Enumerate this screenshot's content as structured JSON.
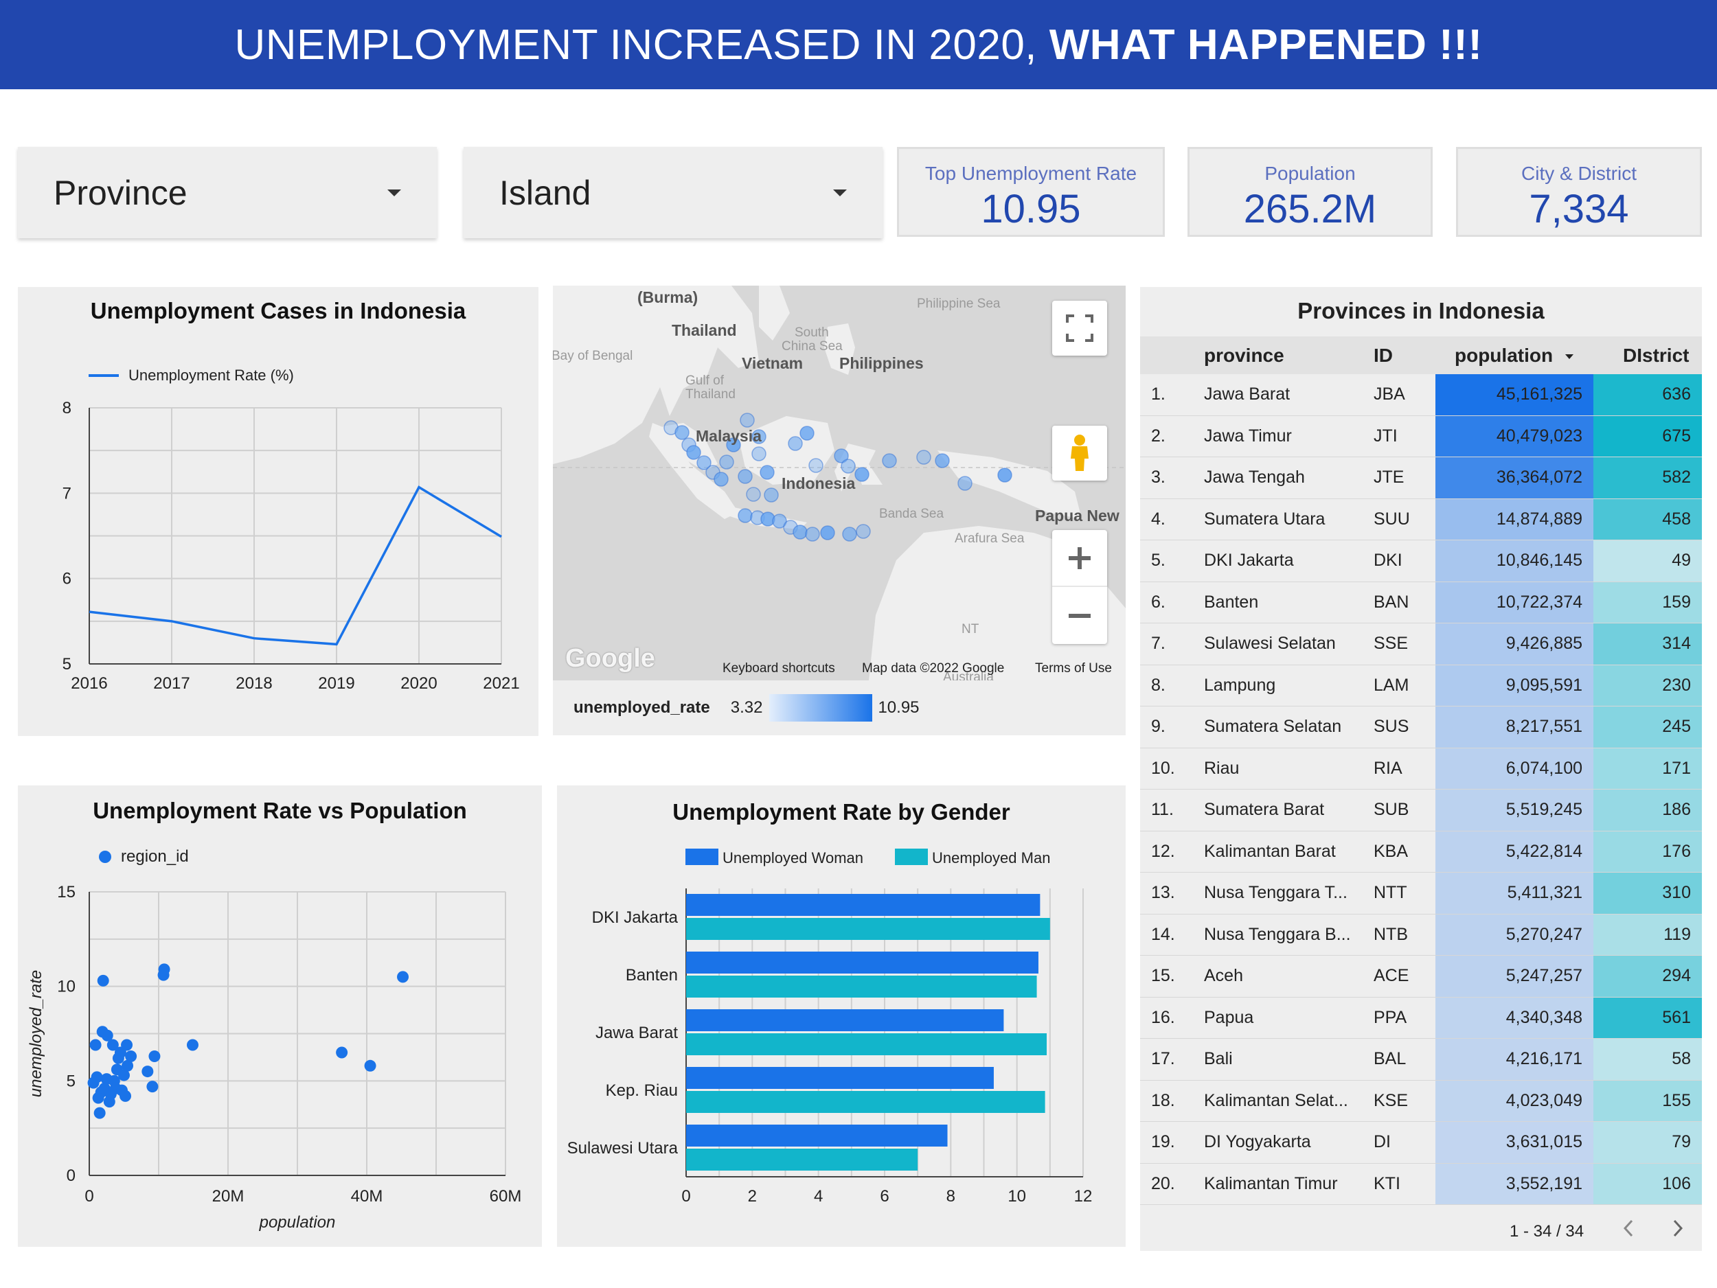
{
  "header": {
    "title_regular": "UNEMPLOYMENT INCREASED IN 2020,",
    "title_bold": "WHAT HAPPENED !!!"
  },
  "filters": [
    {
      "label": "Province"
    },
    {
      "label": "Island"
    }
  ],
  "kpis": [
    {
      "label": "Top Unemployment Rate",
      "value": "10.95"
    },
    {
      "label": "Population",
      "value": "265.2M"
    },
    {
      "label": "City & District",
      "value": "7,334"
    }
  ],
  "colors": {
    "header_bg": "#2147ae",
    "kpi_value": "#2147ae",
    "series_blue": "#1a73e8",
    "series_teal": "#12b5cb"
  },
  "line_chart": {
    "title": "Unemployment Cases in Indonesia",
    "legend": "Unemployment Rate (%)",
    "chart_data": {
      "type": "line",
      "x": [
        "2016",
        "2017",
        "2018",
        "2019",
        "2020",
        "2021"
      ],
      "series": [
        {
          "name": "Unemployment Rate (%)",
          "values": [
            5.61,
            5.5,
            5.3,
            5.23,
            7.07,
            6.49
          ]
        }
      ],
      "ylim": [
        5,
        8
      ],
      "yticks": [
        "5",
        "6",
        "7",
        "8"
      ],
      "grid": true,
      "legend_position": "top-left"
    }
  },
  "scatter_chart": {
    "title": "Unemployment Rate vs Population",
    "legend": "region_id",
    "chart_data": {
      "type": "scatter",
      "xlabel": "population",
      "ylabel": "unemployed_rate",
      "xlim": [
        0,
        60000000
      ],
      "ylim": [
        0,
        15
      ],
      "xticks": [
        "0",
        "20M",
        "40M",
        "60M"
      ],
      "yticks": [
        "0",
        "5",
        "10",
        "15"
      ],
      "series": [
        {
          "name": "region_id",
          "points": [
            [
              600000,
              4.9
            ],
            [
              900000,
              6.9
            ],
            [
              1100000,
              5.2
            ],
            [
              1300000,
              4.1
            ],
            [
              1500000,
              3.3
            ],
            [
              1700000,
              4.4
            ],
            [
              1900000,
              7.6
            ],
            [
              2000000,
              10.3
            ],
            [
              2200000,
              4.6
            ],
            [
              2500000,
              5.1
            ],
            [
              2600000,
              7.4
            ],
            [
              2900000,
              3.9
            ],
            [
              3100000,
              4.3
            ],
            [
              3400000,
              6.9
            ],
            [
              3600000,
              5.0
            ],
            [
              3800000,
              4.6
            ],
            [
              4000000,
              5.6
            ],
            [
              4200000,
              6.2
            ],
            [
              4500000,
              6.5
            ],
            [
              4700000,
              4.5
            ],
            [
              5000000,
              5.3
            ],
            [
              5200000,
              4.2
            ],
            [
              5400000,
              6.9
            ],
            [
              5500000,
              5.8
            ],
            [
              6000000,
              6.3
            ],
            [
              8400000,
              5.5
            ],
            [
              9100000,
              4.7
            ],
            [
              9400000,
              6.3
            ],
            [
              10700000,
              10.6
            ],
            [
              10800000,
              10.9
            ],
            [
              14900000,
              6.9
            ],
            [
              36400000,
              6.5
            ],
            [
              40500000,
              5.8
            ],
            [
              45200000,
              10.5
            ]
          ]
        }
      ],
      "grid": true,
      "legend_position": "top-left"
    }
  },
  "bar_chart": {
    "title": "Unemployment Rate by Gender",
    "chart_data": {
      "type": "bar",
      "orientation": "horizontal",
      "categories": [
        "DKI Jakarta",
        "Banten",
        "Jawa Barat",
        "Kep. Riau",
        "Sulawesi Utara"
      ],
      "series": [
        {
          "name": "Unemployed Woman",
          "values": [
            10.7,
            10.65,
            9.6,
            9.3,
            7.9
          ]
        },
        {
          "name": "Unemployed Man",
          "values": [
            11.0,
            10.6,
            10.9,
            10.85,
            7.0
          ]
        }
      ],
      "xlim": [
        0,
        12
      ],
      "xticks": [
        "0",
        "2",
        "4",
        "6",
        "8",
        "10",
        "12"
      ],
      "grid": true,
      "legend_position": "top"
    }
  },
  "map": {
    "labels": [
      "(Burma)",
      "Thailand",
      "Vietnam",
      "Philippines",
      "Malaysia",
      "Indonesia",
      "Papua New",
      "Bay of Bengal",
      "South",
      "China Sea",
      "Gulf of",
      "Thailand",
      "Philippine Sea",
      "Banda Sea",
      "Arafura Sea",
      "NT",
      "Australia"
    ],
    "footer": {
      "logo": "Google",
      "shortcuts": "Keyboard shortcuts",
      "mapdata": "Map data ©2022 Google",
      "terms": "Terms of Use"
    },
    "legend": {
      "title": "unemployed_rate",
      "min": "3.32",
      "max": "10.95"
    }
  },
  "table": {
    "title": "Provinces in Indonesia",
    "columns": [
      "province",
      "ID",
      "population",
      "DIstrict"
    ],
    "rows": [
      {
        "n": "1.",
        "province": "Jawa Barat",
        "id": "JBA",
        "population": "45,161,325",
        "district": "636",
        "pop_value": 45161325,
        "dist_value": 636
      },
      {
        "n": "2.",
        "province": "Jawa Timur",
        "id": "JTI",
        "population": "40,479,023",
        "district": "675",
        "pop_value": 40479023,
        "dist_value": 675
      },
      {
        "n": "3.",
        "province": "Jawa Tengah",
        "id": "JTE",
        "population": "36,364,072",
        "district": "582",
        "pop_value": 36364072,
        "dist_value": 582
      },
      {
        "n": "4.",
        "province": "Sumatera Utara",
        "id": "SUU",
        "population": "14,874,889",
        "district": "458",
        "pop_value": 14874889,
        "dist_value": 458
      },
      {
        "n": "5.",
        "province": "DKI Jakarta",
        "id": "DKI",
        "population": "10,846,145",
        "district": "49",
        "pop_value": 10846145,
        "dist_value": 49
      },
      {
        "n": "6.",
        "province": "Banten",
        "id": "BAN",
        "population": "10,722,374",
        "district": "159",
        "pop_value": 10722374,
        "dist_value": 159
      },
      {
        "n": "7.",
        "province": "Sulawesi Selatan",
        "id": "SSE",
        "population": "9,426,885",
        "district": "314",
        "pop_value": 9426885,
        "dist_value": 314
      },
      {
        "n": "8.",
        "province": "Lampung",
        "id": "LAM",
        "population": "9,095,591",
        "district": "230",
        "pop_value": 9095591,
        "dist_value": 230
      },
      {
        "n": "9.",
        "province": "Sumatera Selatan",
        "id": "SUS",
        "population": "8,217,551",
        "district": "245",
        "pop_value": 8217551,
        "dist_value": 245
      },
      {
        "n": "10.",
        "province": "Riau",
        "id": "RIA",
        "population": "6,074,100",
        "district": "171",
        "pop_value": 6074100,
        "dist_value": 171
      },
      {
        "n": "11.",
        "province": "Sumatera Barat",
        "id": "SUB",
        "population": "5,519,245",
        "district": "186",
        "pop_value": 5519245,
        "dist_value": 186
      },
      {
        "n": "12.",
        "province": "Kalimantan Barat",
        "id": "KBA",
        "population": "5,422,814",
        "district": "176",
        "pop_value": 5422814,
        "dist_value": 176
      },
      {
        "n": "13.",
        "province": "Nusa Tenggara T...",
        "id": "NTT",
        "population": "5,411,321",
        "district": "310",
        "pop_value": 5411321,
        "dist_value": 310
      },
      {
        "n": "14.",
        "province": "Nusa Tenggara B...",
        "id": "NTB",
        "population": "5,270,247",
        "district": "119",
        "pop_value": 5270247,
        "dist_value": 119
      },
      {
        "n": "15.",
        "province": "Aceh",
        "id": "ACE",
        "population": "5,247,257",
        "district": "294",
        "pop_value": 5247257,
        "dist_value": 294
      },
      {
        "n": "16.",
        "province": "Papua",
        "id": "PPA",
        "population": "4,340,348",
        "district": "561",
        "pop_value": 4340348,
        "dist_value": 561
      },
      {
        "n": "17.",
        "province": "Bali",
        "id": "BAL",
        "population": "4,216,171",
        "district": "58",
        "pop_value": 4216171,
        "dist_value": 58
      },
      {
        "n": "18.",
        "province": "Kalimantan Selat...",
        "id": "KSE",
        "population": "4,023,049",
        "district": "155",
        "pop_value": 4023049,
        "dist_value": 155
      },
      {
        "n": "19.",
        "province": "DI Yogyakarta",
        "id": "DI",
        "population": "3,631,015",
        "district": "79",
        "pop_value": 3631015,
        "dist_value": 79
      },
      {
        "n": "20.",
        "province": "Kalimantan Timur",
        "id": "KTI",
        "population": "3,552,191",
        "district": "106",
        "pop_value": 3552191,
        "dist_value": 106
      }
    ],
    "pager": "1 - 34 / 34"
  }
}
